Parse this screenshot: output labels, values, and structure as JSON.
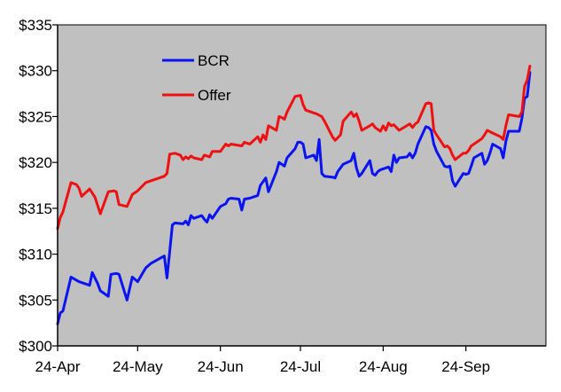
{
  "chart_data": {
    "type": "line",
    "title": "",
    "xlabel": "",
    "ylabel": "",
    "ylim": [
      300,
      335
    ],
    "yticks": [
      300,
      305,
      310,
      315,
      320,
      325,
      330,
      335
    ],
    "ytick_labels": [
      "$300",
      "$305",
      "$310",
      "$315",
      "$320",
      "$325",
      "$330",
      "$335"
    ],
    "xlim": [
      "2013-04-24",
      "2013-10-24"
    ],
    "xticks": [
      "2013-04-24",
      "2013-05-24",
      "2013-06-24",
      "2013-07-24",
      "2013-08-24",
      "2013-09-24"
    ],
    "xtick_labels": [
      "24-Apr",
      "24-May",
      "24-Jun",
      "24-Jul",
      "24-Aug",
      "24-Sep"
    ],
    "grid": false,
    "plot_background": "#c0c0c0",
    "legend": "upper-left inside",
    "series": [
      {
        "name": "BCR",
        "color": "#0a14f0",
        "points": [
          [
            "2013-04-24",
            302.4
          ],
          [
            "2013-04-25",
            303.6
          ],
          [
            "2013-04-26",
            303.8
          ],
          [
            "2013-04-29",
            307.5
          ],
          [
            "2013-05-02",
            307.0
          ],
          [
            "2013-05-06",
            306.6
          ],
          [
            "2013-05-07",
            308.0
          ],
          [
            "2013-05-09",
            306.8
          ],
          [
            "2013-05-10",
            306.0
          ],
          [
            "2013-05-13",
            305.4
          ],
          [
            "2013-05-14",
            307.8
          ],
          [
            "2013-05-16",
            307.9
          ],
          [
            "2013-05-17",
            307.8
          ],
          [
            "2013-05-20",
            305.0
          ],
          [
            "2013-05-22",
            307.5
          ],
          [
            "2013-05-24",
            307.0
          ],
          [
            "2013-05-27",
            308.5
          ],
          [
            "2013-05-29",
            309.0
          ],
          [
            "2013-06-03",
            309.8
          ],
          [
            "2013-06-04",
            307.4
          ],
          [
            "2013-06-05",
            310.3
          ],
          [
            "2013-06-06",
            313.2
          ],
          [
            "2013-06-07",
            313.4
          ],
          [
            "2013-06-10",
            313.3
          ],
          [
            "2013-06-11",
            313.6
          ],
          [
            "2013-06-12",
            313.2
          ],
          [
            "2013-06-13",
            314.2
          ],
          [
            "2013-06-14",
            313.9
          ],
          [
            "2013-06-17",
            314.2
          ],
          [
            "2013-06-18",
            313.8
          ],
          [
            "2013-06-19",
            313.5
          ],
          [
            "2013-06-20",
            314.3
          ],
          [
            "2013-06-21",
            313.9
          ],
          [
            "2013-06-24",
            315.2
          ],
          [
            "2013-06-26",
            315.5
          ],
          [
            "2013-06-27",
            316.0
          ],
          [
            "2013-06-28",
            316.1
          ],
          [
            "2013-07-01",
            316.0
          ],
          [
            "2013-07-02",
            314.8
          ],
          [
            "2013-07-03",
            316.0
          ],
          [
            "2013-07-05",
            316.1
          ],
          [
            "2013-07-08",
            316.4
          ],
          [
            "2013-07-09",
            317.5
          ],
          [
            "2013-07-10",
            317.9
          ],
          [
            "2013-07-11",
            318.3
          ],
          [
            "2013-07-12",
            316.8
          ],
          [
            "2013-07-15",
            319.0
          ],
          [
            "2013-07-16",
            320.0
          ],
          [
            "2013-07-17",
            319.8
          ],
          [
            "2013-07-18",
            319.6
          ],
          [
            "2013-07-19",
            320.5
          ],
          [
            "2013-07-22",
            321.5
          ],
          [
            "2013-07-23",
            322.2
          ],
          [
            "2013-07-24",
            322.2
          ],
          [
            "2013-07-25",
            322.0
          ],
          [
            "2013-07-26",
            320.5
          ],
          [
            "2013-07-29",
            320.8
          ],
          [
            "2013-07-30",
            320.2
          ],
          [
            "2013-07-31",
            322.5
          ],
          [
            "2013-08-01",
            318.8
          ],
          [
            "2013-08-02",
            318.5
          ],
          [
            "2013-08-05",
            318.4
          ],
          [
            "2013-08-06",
            318.3
          ],
          [
            "2013-08-07",
            319.0
          ],
          [
            "2013-08-09",
            319.8
          ],
          [
            "2013-08-12",
            320.2
          ],
          [
            "2013-08-13",
            321.0
          ],
          [
            "2013-08-14",
            319.4
          ],
          [
            "2013-08-15",
            318.5
          ],
          [
            "2013-08-16",
            318.8
          ],
          [
            "2013-08-19",
            320.2
          ],
          [
            "2013-08-20",
            318.8
          ],
          [
            "2013-08-21",
            318.6
          ],
          [
            "2013-08-22",
            319.0
          ],
          [
            "2013-08-23",
            319.2
          ],
          [
            "2013-08-26",
            319.5
          ],
          [
            "2013-08-27",
            319.0
          ],
          [
            "2013-08-28",
            320.8
          ],
          [
            "2013-08-29",
            320.0
          ],
          [
            "2013-08-30",
            320.5
          ],
          [
            "2013-09-02",
            320.6
          ],
          [
            "2013-09-03",
            321.0
          ],
          [
            "2013-09-04",
            320.5
          ],
          [
            "2013-09-05",
            321.0
          ],
          [
            "2013-09-06",
            322.0
          ],
          [
            "2013-09-09",
            323.9
          ],
          [
            "2013-09-10",
            323.8
          ],
          [
            "2013-09-11",
            323.5
          ],
          [
            "2013-09-12",
            322.0
          ],
          [
            "2013-09-13",
            321.2
          ],
          [
            "2013-09-16",
            319.6
          ],
          [
            "2013-09-17",
            319.5
          ],
          [
            "2013-09-18",
            319.6
          ],
          [
            "2013-09-19",
            318.0
          ],
          [
            "2013-09-20",
            317.4
          ],
          [
            "2013-09-23",
            318.8
          ],
          [
            "2013-09-24",
            318.7
          ],
          [
            "2013-09-25",
            318.8
          ],
          [
            "2013-09-26",
            319.6
          ],
          [
            "2013-09-27",
            320.5
          ],
          [
            "2013-09-30",
            321.0
          ],
          [
            "2013-10-01",
            319.8
          ],
          [
            "2013-10-02",
            320.2
          ],
          [
            "2013-10-03",
            321.0
          ],
          [
            "2013-10-04",
            322.0
          ],
          [
            "2013-10-07",
            321.5
          ],
          [
            "2013-10-08",
            320.5
          ],
          [
            "2013-10-09",
            322.3
          ],
          [
            "2013-10-10",
            323.4
          ],
          [
            "2013-10-14",
            323.4
          ],
          [
            "2013-10-15",
            324.8
          ],
          [
            "2013-10-16",
            327.0
          ],
          [
            "2013-10-17",
            327.2
          ],
          [
            "2013-10-18",
            329.8
          ]
        ]
      },
      {
        "name": "Offer",
        "color": "#ee1111",
        "points": [
          [
            "2013-04-24",
            312.8
          ],
          [
            "2013-04-25",
            314.0
          ],
          [
            "2013-04-26",
            314.6
          ],
          [
            "2013-04-29",
            317.8
          ],
          [
            "2013-05-01",
            317.6
          ],
          [
            "2013-05-02",
            317.2
          ],
          [
            "2013-05-03",
            316.3
          ],
          [
            "2013-05-06",
            317.1
          ],
          [
            "2013-05-08",
            316.2
          ],
          [
            "2013-05-10",
            314.4
          ],
          [
            "2013-05-13",
            316.8
          ],
          [
            "2013-05-15",
            316.9
          ],
          [
            "2013-05-16",
            316.8
          ],
          [
            "2013-05-17",
            315.4
          ],
          [
            "2013-05-20",
            315.2
          ],
          [
            "2013-05-22",
            316.5
          ],
          [
            "2013-05-24",
            316.9
          ],
          [
            "2013-05-27",
            317.8
          ],
          [
            "2013-05-29",
            318.0
          ],
          [
            "2013-06-03",
            318.5
          ],
          [
            "2013-06-04",
            318.8
          ],
          [
            "2013-06-05",
            320.9
          ],
          [
            "2013-06-07",
            321.0
          ],
          [
            "2013-06-09",
            320.8
          ],
          [
            "2013-06-10",
            320.3
          ],
          [
            "2013-06-11",
            320.6
          ],
          [
            "2013-06-12",
            320.4
          ],
          [
            "2013-06-13",
            320.7
          ],
          [
            "2013-06-14",
            320.5
          ],
          [
            "2013-06-17",
            320.3
          ],
          [
            "2013-06-18",
            320.8
          ],
          [
            "2013-06-20",
            320.6
          ],
          [
            "2013-06-21",
            321.2
          ],
          [
            "2013-06-24",
            321.2
          ],
          [
            "2013-06-26",
            322.0
          ],
          [
            "2013-06-27",
            321.8
          ],
          [
            "2013-06-28",
            322.0
          ],
          [
            "2013-07-02",
            321.8
          ],
          [
            "2013-07-03",
            322.2
          ],
          [
            "2013-07-05",
            322.0
          ],
          [
            "2013-07-08",
            322.8
          ],
          [
            "2013-07-09",
            322.2
          ],
          [
            "2013-07-10",
            323.0
          ],
          [
            "2013-07-11",
            322.5
          ],
          [
            "2013-07-12",
            324.0
          ],
          [
            "2013-07-15",
            323.5
          ],
          [
            "2013-07-16",
            325.0
          ],
          [
            "2013-07-17",
            324.9
          ],
          [
            "2013-07-18",
            324.7
          ],
          [
            "2013-07-19",
            325.5
          ],
          [
            "2013-07-22",
            327.2
          ],
          [
            "2013-07-24",
            327.3
          ],
          [
            "2013-07-25",
            326.3
          ],
          [
            "2013-07-26",
            325.7
          ],
          [
            "2013-07-29",
            325.4
          ],
          [
            "2013-07-30",
            325.3
          ],
          [
            "2013-08-01",
            325.0
          ],
          [
            "2013-08-02",
            324.5
          ],
          [
            "2013-08-05",
            322.8
          ],
          [
            "2013-08-06",
            322.4
          ],
          [
            "2013-08-08",
            323.0
          ],
          [
            "2013-08-09",
            324.5
          ],
          [
            "2013-08-12",
            325.5
          ],
          [
            "2013-08-13",
            325.0
          ],
          [
            "2013-08-14",
            325.3
          ],
          [
            "2013-08-15",
            324.5
          ],
          [
            "2013-08-16",
            323.5
          ],
          [
            "2013-08-19",
            324.0
          ],
          [
            "2013-08-20",
            324.2
          ],
          [
            "2013-08-21",
            323.8
          ],
          [
            "2013-08-23",
            323.4
          ],
          [
            "2013-08-24",
            324.0
          ],
          [
            "2013-08-25",
            323.5
          ],
          [
            "2013-08-26",
            324.3
          ],
          [
            "2013-08-27",
            324.0
          ],
          [
            "2013-08-28",
            324.1
          ],
          [
            "2013-08-29",
            323.8
          ],
          [
            "2013-08-30",
            323.5
          ],
          [
            "2013-09-03",
            324.2
          ],
          [
            "2013-09-04",
            323.8
          ],
          [
            "2013-09-05",
            324.2
          ],
          [
            "2013-09-06",
            324.4
          ],
          [
            "2013-09-09",
            326.4
          ],
          [
            "2013-09-10",
            326.5
          ],
          [
            "2013-09-11",
            326.4
          ],
          [
            "2013-09-12",
            323.5
          ],
          [
            "2013-09-13",
            323.0
          ],
          [
            "2013-09-16",
            321.7
          ],
          [
            "2013-09-17",
            321.8
          ],
          [
            "2013-09-18",
            321.5
          ],
          [
            "2013-09-19",
            320.8
          ],
          [
            "2013-09-20",
            320.3
          ],
          [
            "2013-09-23",
            321.0
          ],
          [
            "2013-09-24",
            321.0
          ],
          [
            "2013-09-25",
            321.3
          ],
          [
            "2013-09-26",
            321.8
          ],
          [
            "2013-09-27",
            322.0
          ],
          [
            "2013-09-30",
            322.6
          ],
          [
            "2013-10-01",
            323.0
          ],
          [
            "2013-10-02",
            323.5
          ],
          [
            "2013-10-04",
            323.2
          ],
          [
            "2013-10-07",
            322.8
          ],
          [
            "2013-10-08",
            322.5
          ],
          [
            "2013-10-09",
            324.0
          ],
          [
            "2013-10-10",
            325.2
          ],
          [
            "2013-10-14",
            325.0
          ],
          [
            "2013-10-15",
            325.5
          ],
          [
            "2013-10-16",
            328.3
          ],
          [
            "2013-10-17",
            329.0
          ],
          [
            "2013-10-18",
            330.5
          ]
        ]
      }
    ]
  }
}
